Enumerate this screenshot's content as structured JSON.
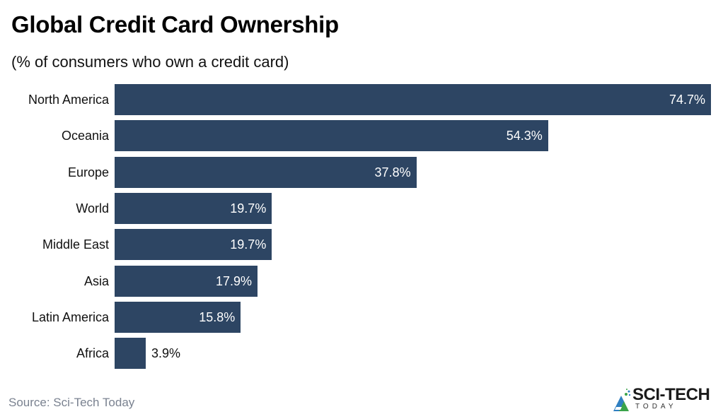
{
  "header": {
    "title": "Global Credit Card Ownership",
    "subtitle": "(% of consumers who own a credit card)"
  },
  "footer": {
    "source": "Source: Sci-Tech Today",
    "logo_main": "SCI-TECH",
    "logo_sub": "TODAY"
  },
  "colors": {
    "bar": "#2d4563",
    "logo_blue": "#2f7fc1",
    "logo_green": "#3aa34a"
  },
  "chart_data": {
    "type": "bar",
    "orientation": "horizontal",
    "title": "Global Credit Card Ownership",
    "subtitle": "(% of consumers who own a credit card)",
    "xlabel": "",
    "ylabel": "",
    "categories": [
      "North America",
      "Oceania",
      "Europe",
      "World",
      "Middle East",
      "Asia",
      "Latin America",
      "Africa"
    ],
    "values": [
      74.7,
      54.3,
      37.8,
      19.7,
      19.7,
      17.9,
      15.8,
      3.9
    ],
    "value_labels": [
      "74.7%",
      "54.3%",
      "37.8%",
      "19.7%",
      "19.7%",
      "17.9%",
      "15.8%",
      "3.9%"
    ],
    "xlim": [
      0,
      74.7
    ],
    "grid": false,
    "legend": null,
    "source": "Source: Sci-Tech Today"
  }
}
